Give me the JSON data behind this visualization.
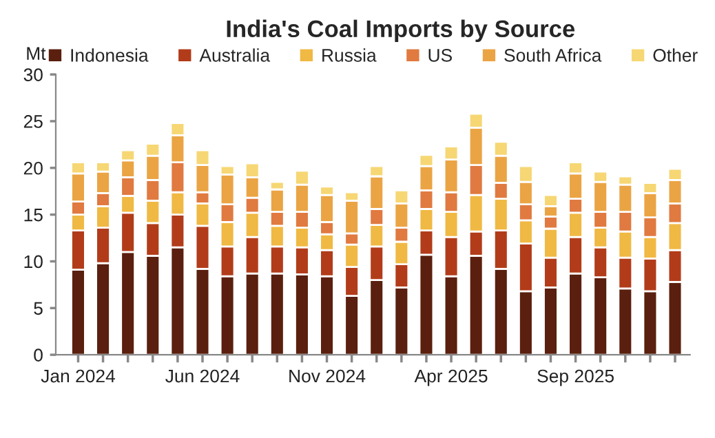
{
  "chart_data": {
    "type": "bar",
    "stacked": true,
    "title": "India's Coal Imports by Source",
    "ylabel": "Mt",
    "categories": [
      "Jan 2024",
      null,
      null,
      null,
      null,
      "Jun 2024",
      null,
      null,
      null,
      null,
      "Nov 2024",
      null,
      null,
      null,
      null,
      "Apr 2025",
      null,
      null,
      null,
      null,
      "Sep 2025",
      null,
      null,
      null,
      null
    ],
    "series": [
      {
        "name": "Indonesia",
        "color": "#5a1f0e",
        "values": [
          9.1,
          9.8,
          11.0,
          10.6,
          11.5,
          9.2,
          8.4,
          8.7,
          8.7,
          8.6,
          8.4,
          6.3,
          8.0,
          7.2,
          10.7,
          8.4,
          10.6,
          9.2,
          6.8,
          7.2,
          8.7,
          8.3,
          7.1,
          6.8,
          7.8
        ]
      },
      {
        "name": "Australia",
        "color": "#b23c1a",
        "values": [
          4.2,
          3.8,
          4.2,
          3.5,
          3.5,
          4.6,
          3.2,
          3.9,
          2.9,
          2.9,
          2.8,
          3.1,
          3.6,
          2.5,
          2.6,
          4.2,
          2.6,
          4.1,
          5.1,
          3.2,
          3.9,
          3.2,
          3.3,
          3.5,
          3.4
        ]
      },
      {
        "name": "Russia",
        "color": "#f0b944",
        "values": [
          1.7,
          2.3,
          1.8,
          2.4,
          2.4,
          2.4,
          2.6,
          2.6,
          2.2,
          2.1,
          1.7,
          2.4,
          2.3,
          2.4,
          2.3,
          2.7,
          3.9,
          3.4,
          2.5,
          3.1,
          2.6,
          2.1,
          2.8,
          2.3,
          2.9
        ]
      },
      {
        "name": "US",
        "color": "#e07a40",
        "values": [
          1.4,
          1.4,
          2.0,
          2.2,
          3.2,
          1.2,
          1.9,
          1.6,
          1.5,
          1.7,
          1.3,
          1.2,
          1.7,
          1.5,
          2.0,
          2.1,
          3.2,
          1.7,
          1.7,
          1.3,
          1.5,
          1.7,
          2.1,
          2.1,
          2.1
        ]
      },
      {
        "name": "South Africa",
        "color": "#eba444",
        "values": [
          3.0,
          2.3,
          1.8,
          2.6,
          2.9,
          2.9,
          3.2,
          2.2,
          2.4,
          2.9,
          2.9,
          3.5,
          3.5,
          2.6,
          2.6,
          3.5,
          4.0,
          2.9,
          2.4,
          1.1,
          2.7,
          3.2,
          2.9,
          2.6,
          2.5
        ]
      },
      {
        "name": "Other",
        "color": "#f6d774",
        "values": [
          1.2,
          1.0,
          1.1,
          1.3,
          1.3,
          1.6,
          0.9,
          1.5,
          0.8,
          1.5,
          0.9,
          0.9,
          1.1,
          1.4,
          1.2,
          1.4,
          1.5,
          1.5,
          1.7,
          1.2,
          1.2,
          1.1,
          0.9,
          1.1,
          1.2
        ]
      }
    ],
    "ylim": [
      0,
      30
    ],
    "yticks": [
      0,
      5,
      10,
      15,
      20,
      25,
      30
    ],
    "grid": false,
    "legend": "top"
  }
}
